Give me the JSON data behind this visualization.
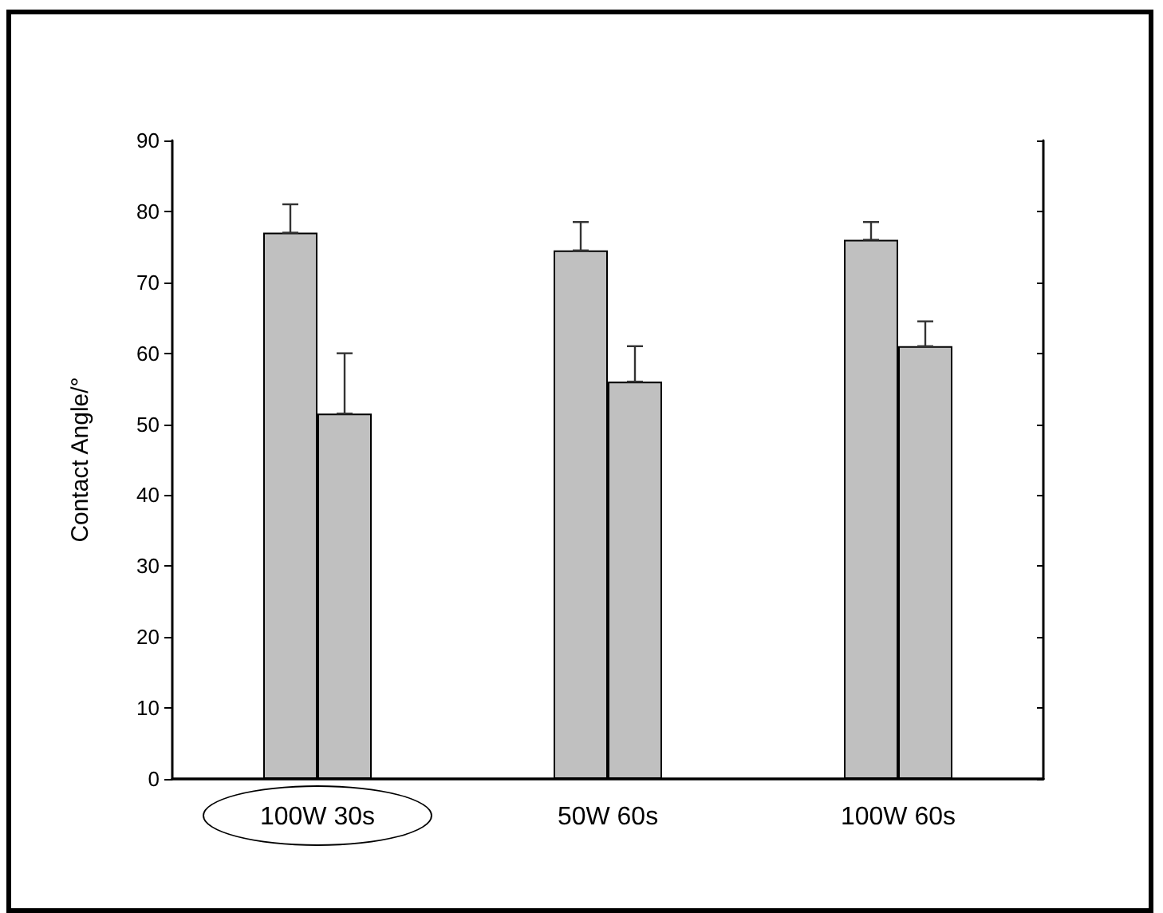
{
  "chart_data": {
    "type": "bar",
    "ylabel": "Contact Angle/°",
    "categories": [
      "100W 30s",
      "50W 60s",
      "100W 60s"
    ],
    "series": [
      {
        "color": "#c0c0c0",
        "values": [
          77,
          74.5,
          76
        ],
        "errors": [
          [
            77,
            81
          ],
          [
            74.5,
            78.5
          ],
          [
            76,
            78.5
          ]
        ]
      },
      {
        "color": "#c0c0c0",
        "values": [
          51.5,
          56,
          61
        ],
        "errors": [
          [
            51.5,
            60
          ],
          [
            56,
            61
          ],
          [
            61,
            64.5
          ]
        ]
      }
    ],
    "ylim": [
      0,
      90
    ],
    "yticks": [
      0,
      10,
      20,
      30,
      40,
      50,
      60,
      70,
      80,
      90
    ],
    "grid": false
  }
}
